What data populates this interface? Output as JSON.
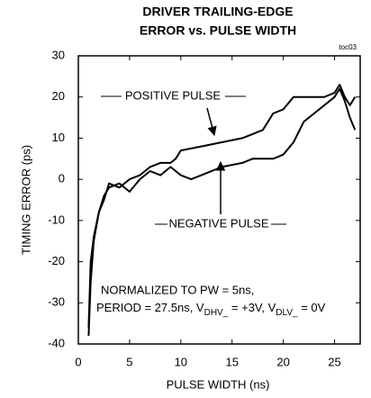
{
  "chart_data": {
    "type": "line",
    "title": [
      "DRIVER TRAILING-EDGE",
      "ERROR vs. PULSE WIDTH"
    ],
    "figure_id": "toc03",
    "xlabel": "PULSE WIDTH (ns)",
    "ylabel": "TIMING ERROR (ps)",
    "xlim": [
      0,
      27.5
    ],
    "ylim": [
      -40,
      30
    ],
    "xticks": [
      0,
      5,
      10,
      15,
      20,
      25
    ],
    "yticks": [
      -40,
      -30,
      -20,
      -10,
      0,
      10,
      20,
      30
    ],
    "grid": false,
    "x": [
      1,
      1.2,
      1.5,
      2,
      2.5,
      3,
      4,
      5,
      6,
      7,
      8,
      9,
      9.5,
      10,
      11,
      12,
      14,
      16,
      17,
      18,
      19,
      20,
      21,
      22,
      23,
      24,
      25,
      25.5,
      26,
      26.5,
      27
    ],
    "series": [
      {
        "name": "POSITIVE PULSE",
        "color": "#000000",
        "values": [
          -38,
          -25,
          -15,
          -8,
          -5,
          -1,
          -2,
          0,
          1,
          3,
          4,
          4,
          5,
          7,
          7.5,
          8,
          9,
          10,
          11,
          12,
          16,
          17,
          20,
          20,
          20,
          20,
          21,
          23,
          20,
          18,
          20
        ]
      },
      {
        "name": "NEGATIVE PULSE",
        "color": "#000000",
        "values": [
          -36,
          -20,
          -14,
          -8,
          -4,
          -2,
          -1,
          -3,
          0,
          2,
          1,
          3,
          2,
          1,
          0,
          1,
          3,
          4,
          5,
          5,
          5,
          6,
          9,
          14,
          16,
          18,
          20,
          22,
          19,
          15,
          12
        ]
      }
    ],
    "annotations": {
      "note_line1": "NORMALIZED TO PW = 5ns,",
      "note_line2": [
        "PERIOD = 27.5ns, V",
        "DHV_",
        " = +3V, V",
        "DLV_",
        " = 0V"
      ]
    }
  }
}
